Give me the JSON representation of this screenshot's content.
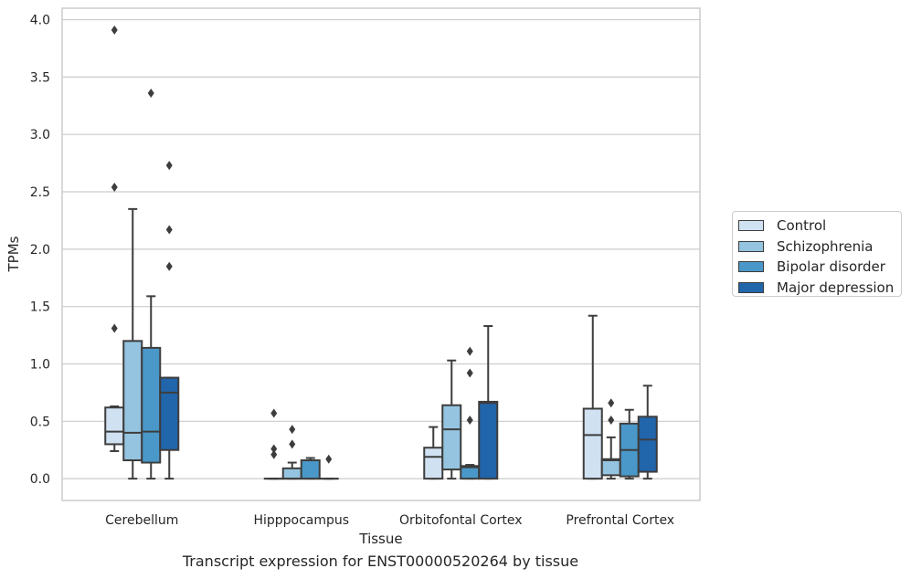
{
  "caption": "Transcript expression for ENST00000520264 by tissue",
  "chart_data": {
    "type": "box",
    "xlabel": "Tissue",
    "ylabel": "TPMs",
    "ylim": [
      -0.19,
      4.1
    ],
    "yticks": [
      "0.0",
      "0.5",
      "1.0",
      "1.5",
      "2.0",
      "2.5",
      "3.0",
      "3.5",
      "4.0"
    ],
    "grid": true,
    "legend_position": "right, outside",
    "categories": [
      "Cerebellum",
      "Hipppocampus",
      "Orbitofontal Cortex",
      "Prefrontal Cortex"
    ],
    "series": [
      {
        "name": "Control",
        "color": "#d0e1f2",
        "boxes": [
          {
            "q1": 0.3,
            "median": 0.41,
            "q3": 0.62,
            "whisker_low": 0.24,
            "whisker_high": 0.63,
            "outliers": [
              1.31,
              2.54,
              3.91
            ]
          },
          {
            "q1": 0.0,
            "median": 0.0,
            "q3": 0.0,
            "whisker_low": 0.0,
            "whisker_high": 0.0,
            "outliers": [
              0.21,
              0.26,
              0.57
            ]
          },
          {
            "q1": 0.0,
            "median": 0.19,
            "q3": 0.27,
            "whisker_low": 0.0,
            "whisker_high": 0.45,
            "outliers": []
          },
          {
            "q1": 0.0,
            "median": 0.38,
            "q3": 0.61,
            "whisker_low": 0.0,
            "whisker_high": 1.42,
            "outliers": []
          }
        ]
      },
      {
        "name": "Schizophrenia",
        "color": "#94c4df",
        "boxes": [
          {
            "q1": 0.16,
            "median": 0.4,
            "q3": 1.2,
            "whisker_low": 0.0,
            "whisker_high": 2.35,
            "outliers": []
          },
          {
            "q1": 0.0,
            "median": 0.0,
            "q3": 0.09,
            "whisker_low": 0.0,
            "whisker_high": 0.14,
            "outliers": [
              0.3,
              0.43
            ]
          },
          {
            "q1": 0.08,
            "median": 0.43,
            "q3": 0.64,
            "whisker_low": 0.0,
            "whisker_high": 1.03,
            "outliers": []
          },
          {
            "q1": 0.03,
            "median": 0.16,
            "q3": 0.17,
            "whisker_low": 0.0,
            "whisker_high": 0.36,
            "outliers": [
              0.51,
              0.66
            ]
          }
        ]
      },
      {
        "name": "Bipolar disorder",
        "color": "#4a98c9",
        "boxes": [
          {
            "q1": 0.14,
            "median": 0.41,
            "q3": 1.14,
            "whisker_low": 0.0,
            "whisker_high": 1.59,
            "outliers": [
              3.36
            ]
          },
          {
            "q1": 0.0,
            "median": 0.0,
            "q3": 0.16,
            "whisker_low": 0.0,
            "whisker_high": 0.18,
            "outliers": []
          },
          {
            "q1": 0.0,
            "median": 0.1,
            "q3": 0.11,
            "whisker_low": 0.0,
            "whisker_high": 0.12,
            "outliers": [
              0.51,
              0.92,
              1.11
            ]
          },
          {
            "q1": 0.02,
            "median": 0.25,
            "q3": 0.48,
            "whisker_low": 0.0,
            "whisker_high": 0.6,
            "outliers": []
          }
        ]
      },
      {
        "name": "Major depression",
        "color": "#2165ab",
        "boxes": [
          {
            "q1": 0.25,
            "median": 0.75,
            "q3": 0.88,
            "whisker_low": 0.0,
            "whisker_high": 0.88,
            "outliers": [
              1.85,
              2.17,
              2.73
            ]
          },
          {
            "q1": 0.0,
            "median": 0.0,
            "q3": 0.0,
            "whisker_low": 0.0,
            "whisker_high": 0.0,
            "outliers": [
              0.17
            ]
          },
          {
            "q1": 0.0,
            "median": 0.66,
            "q3": 0.67,
            "whisker_low": 0.0,
            "whisker_high": 1.33,
            "outliers": []
          },
          {
            "q1": 0.06,
            "median": 0.34,
            "q3": 0.54,
            "whisker_low": 0.0,
            "whisker_high": 0.81,
            "outliers": []
          }
        ]
      }
    ]
  }
}
